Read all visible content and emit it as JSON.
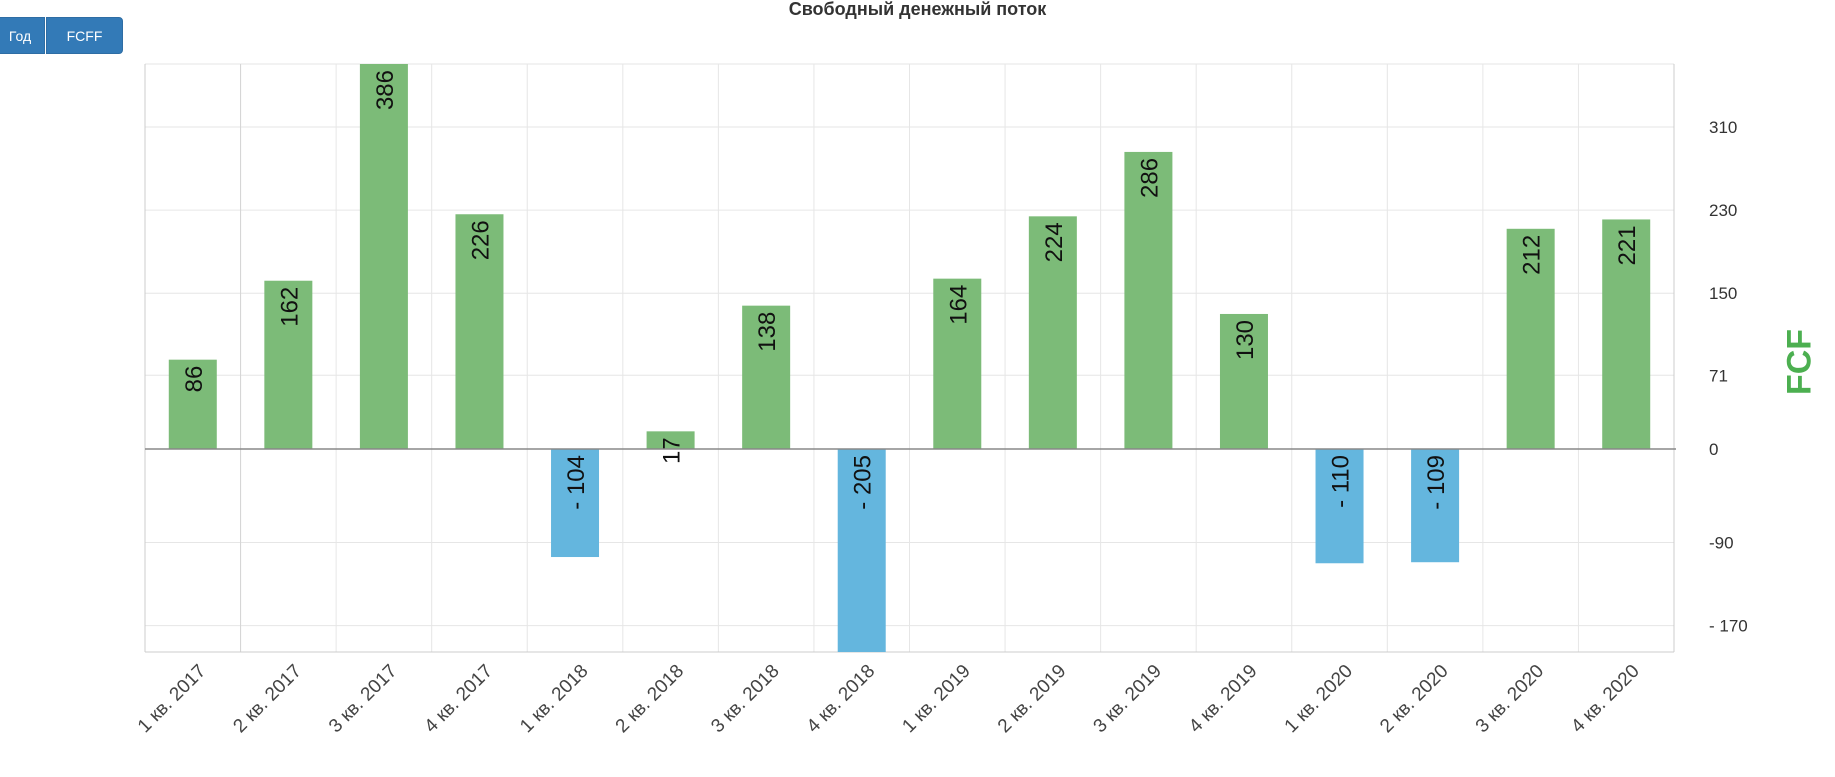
{
  "controls": {
    "period_label": "Год",
    "metric_label": "FCFF"
  },
  "chart_data": {
    "type": "bar",
    "title": "Свободный денежный поток",
    "ylabel": "FCF",
    "categories": [
      "1 кв. 2017",
      "2 кв. 2017",
      "3 кв. 2017",
      "4 кв. 2017",
      "1 кв. 2018",
      "2 кв. 2018",
      "3 кв. 2018",
      "4 кв. 2018",
      "1 кв. 2019",
      "2 кв. 2019",
      "3 кв. 2019",
      "4 кв. 2019",
      "1 кв. 2020",
      "2 кв. 2020",
      "3 кв. 2020",
      "4 кв. 2020"
    ],
    "values": [
      86,
      162,
      386,
      226,
      -104,
      17,
      138,
      -205,
      164,
      224,
      286,
      130,
      -110,
      -109,
      212,
      221
    ],
    "value_labels": [
      "86",
      "162",
      "386",
      "226",
      "- 104",
      "17",
      "138",
      "- 205",
      "164",
      "224",
      "286",
      "130",
      "- 110",
      "- 109",
      "212",
      "221"
    ],
    "y_ticks": [
      310,
      230,
      150,
      71,
      0,
      -90,
      -170
    ],
    "y_tick_labels": [
      "310",
      "230",
      "150",
      "71",
      "0",
      "-90",
      "- 170"
    ],
    "ylim": [
      -205,
      386
    ],
    "grid": true,
    "y_axis_position": "right",
    "colors": {
      "positive": "#7cbb78",
      "negative": "#64b6de",
      "axis_title": "#4caf50",
      "grid": "#e6e6e6",
      "zero_line": "#888888"
    }
  }
}
